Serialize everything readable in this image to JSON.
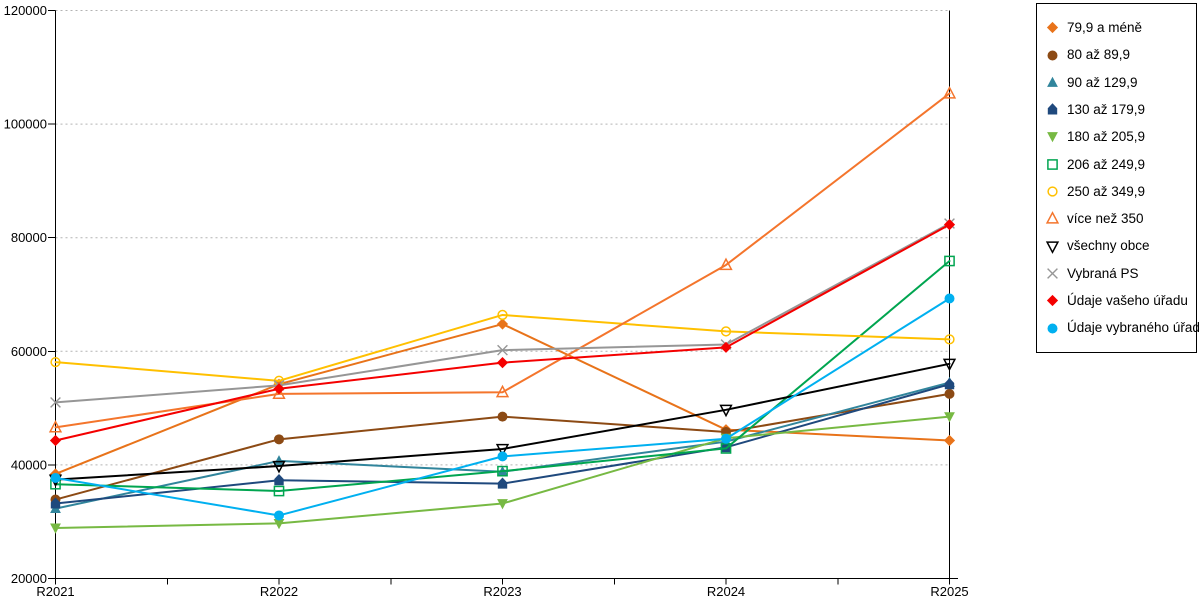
{
  "chart_data": {
    "type": "line",
    "title": "",
    "xlabel": "",
    "ylabel": "",
    "x_categories": [
      "R2021",
      "R2022",
      "R2023",
      "R2024",
      "R2025"
    ],
    "y_tick_labels": [
      "20000",
      "40000",
      "60000",
      "80000",
      "100000",
      "120000"
    ],
    "ylim": [
      20000,
      120000
    ],
    "grid": "horizontal-dotted",
    "legend_position": "right-box",
    "axis_color": "#000000",
    "gridline_color": "#b3b3b3",
    "series": [
      {
        "name": "79,9 a méně",
        "color": "#E8731A",
        "marker": "diamond",
        "fill": "filled",
        "values": [
          38400,
          54200,
          64800,
          46200,
          44300
        ]
      },
      {
        "name": "80 až 89,9",
        "color": "#8C4A14",
        "marker": "circle",
        "fill": "filled",
        "values": [
          33900,
          44500,
          48500,
          45800,
          52500
        ]
      },
      {
        "name": "90 až 129,9",
        "color": "#31859C",
        "marker": "triangle-up",
        "fill": "filled",
        "values": [
          32300,
          40700,
          38800,
          44100,
          54500
        ]
      },
      {
        "name": "130 až 179,9",
        "color": "#1F497D",
        "marker": "house",
        "fill": "filled",
        "values": [
          33200,
          37300,
          36700,
          43100,
          54200
        ]
      },
      {
        "name": "180 až 205,9",
        "color": "#77B943",
        "marker": "triangle-down",
        "fill": "filled",
        "values": [
          28900,
          29700,
          33200,
          44700,
          48500
        ]
      },
      {
        "name": "206 až 249,9",
        "color": "#00A550",
        "marker": "square",
        "fill": "open",
        "values": [
          36600,
          35400,
          38900,
          42900,
          75900
        ]
      },
      {
        "name": "250 až 349,9",
        "color": "#FFC000",
        "marker": "circle",
        "fill": "open",
        "values": [
          58100,
          54800,
          66400,
          63500,
          62100
        ]
      },
      {
        "name": "více než 350",
        "color": "#F4752C",
        "marker": "triangle-up",
        "fill": "open",
        "values": [
          46600,
          52500,
          52800,
          75200,
          105400
        ]
      },
      {
        "name": "všechny obce",
        "color": "#000000",
        "marker": "triangle-down",
        "fill": "open",
        "values": [
          37400,
          39800,
          42800,
          49700,
          57800
        ]
      },
      {
        "name": "Vybraná PS",
        "color": "#969696",
        "marker": "x-cross",
        "fill": "open",
        "values": [
          51000,
          54000,
          60200,
          61200,
          82500
        ]
      },
      {
        "name": "Údaje vašeho úřadu",
        "color": "#F40000",
        "marker": "diamond",
        "fill": "filled",
        "values": [
          44300,
          53400,
          58000,
          60700,
          82300
        ]
      },
      {
        "name": "Údaje vybraného úřadu",
        "color": "#00B0F0",
        "marker": "circle",
        "fill": "filled",
        "values": [
          37700,
          31100,
          41500,
          44600,
          69300
        ]
      }
    ]
  }
}
